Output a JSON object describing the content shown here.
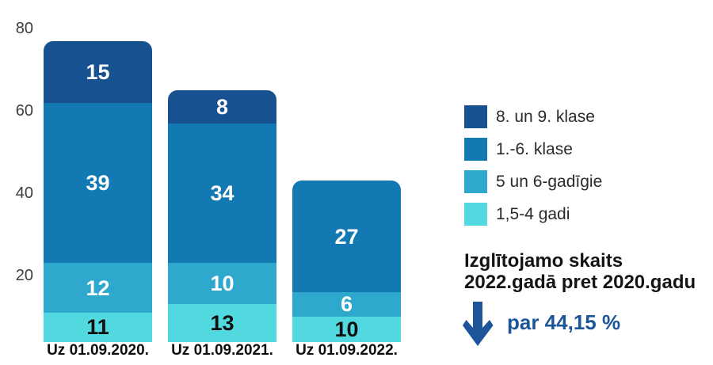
{
  "chart_data": {
    "type": "bar",
    "stacked": true,
    "categories": [
      "Uz 01.09.2020.",
      "Uz 01.09.2021.",
      "Uz 01.09.2022."
    ],
    "series": [
      {
        "name": "8. un 9. klase",
        "color": "#17518f",
        "label_color": "#ffffff",
        "values": [
          15,
          8,
          0
        ]
      },
      {
        "name": "1.-6. klase",
        "color": "#1279b2",
        "label_color": "#ffffff",
        "values": [
          39,
          34,
          27
        ]
      },
      {
        "name": "5 un 6-gadīgie",
        "color": "#2ea8cd",
        "label_color": "#ffffff",
        "values": [
          12,
          10,
          6
        ]
      },
      {
        "name": "1,5-4 gadi",
        "color": "#52d9e0",
        "label_color": "#101010",
        "values": [
          11,
          13,
          10
        ]
      }
    ],
    "totals": [
      77,
      65,
      43
    ],
    "yticks": [
      20,
      40,
      60,
      80
    ],
    "ylim": [
      0,
      80
    ],
    "grid": false,
    "legend_position": "right",
    "value_labels_shown": true
  },
  "annotation": {
    "title_line1": "Izglītojamo skaits",
    "title_line2": "2022.gadā pret 2020.gadu",
    "change_text": "par 44,15 %",
    "accent_color": "#1c5699",
    "direction": "down"
  }
}
